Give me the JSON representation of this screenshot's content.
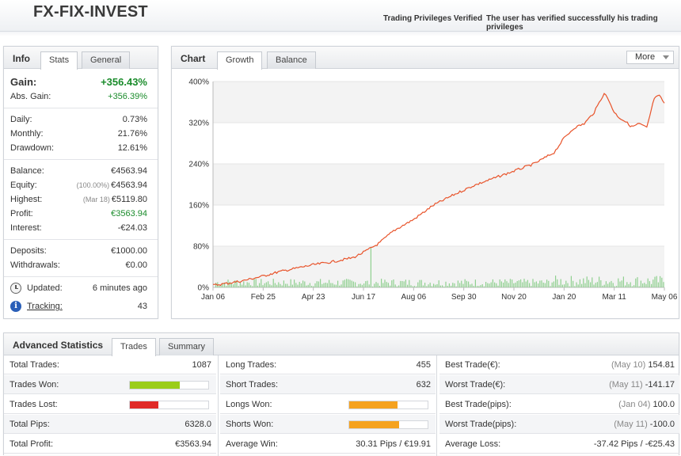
{
  "header": {
    "brand": "FX-FIX-INVEST",
    "verified_label": "Trading Privileges Verified",
    "verified_text": "The user has verified successfully his trading privileges"
  },
  "info": {
    "title": "Info",
    "tabs": [
      "Stats",
      "General"
    ],
    "gain": {
      "label": "Gain:",
      "value": "+356.43%"
    },
    "abs_gain": {
      "label": "Abs. Gain:",
      "value": "+356.39%"
    },
    "daily": {
      "label": "Daily:",
      "value": "0.73%"
    },
    "monthly": {
      "label": "Monthly:",
      "value": "21.76%"
    },
    "drawdown": {
      "label": "Drawdown:",
      "value": "12.61%"
    },
    "balance": {
      "label": "Balance:",
      "value": "€4563.94"
    },
    "equity": {
      "label": "Equity:",
      "sub": "(100.00%)",
      "value": "€4563.94"
    },
    "highest": {
      "label": "Highest:",
      "sub": "(Mar 18)",
      "value": "€5119.80"
    },
    "profit": {
      "label": "Profit:",
      "value": "€3563.94"
    },
    "interest": {
      "label": "Interest:",
      "value": "-€24.03"
    },
    "deposits": {
      "label": "Deposits:",
      "value": "€1000.00"
    },
    "withdrawals": {
      "label": "Withdrawals:",
      "value": "€0.00"
    },
    "updated": {
      "label": "Updated:",
      "value": "6 minutes ago"
    },
    "tracking": {
      "label": "Tracking:",
      "value": "43"
    }
  },
  "chart_panel": {
    "title": "Chart",
    "tabs": [
      "Growth",
      "Balance"
    ],
    "more_label": "More"
  },
  "chart_data": {
    "type": "line",
    "title": "",
    "xlabel": "",
    "ylabel": "",
    "ylim": [
      0,
      400
    ],
    "y_ticks": [
      "0%",
      "80%",
      "160%",
      "240%",
      "320%",
      "400%"
    ],
    "y_tick_values": [
      0,
      80,
      160,
      240,
      320,
      400
    ],
    "x_ticks": [
      "Jan 06",
      "Feb 25",
      "Apr 23",
      "Jun 17",
      "Aug 06",
      "Sep 30",
      "Nov 20",
      "Jan 20",
      "Mar 11",
      "May 06"
    ],
    "grid": true,
    "series": [
      {
        "color": "#e8532a",
        "x": [
          0,
          0.3,
          0.6,
          1,
          1.3,
          1.6,
          2,
          2.4,
          2.8,
          3.0,
          3.3,
          3.6,
          4,
          4.4,
          4.8,
          5.2,
          5.6,
          6,
          6.4,
          6.8,
          7,
          7.2,
          7.4,
          7.6,
          7.8,
          7.9,
          8.0,
          8.1,
          8.2,
          8.35,
          8.5,
          8.65,
          8.8,
          8.9,
          9.0
        ],
        "values": [
          4,
          8,
          13,
          22,
          30,
          36,
          44,
          50,
          58,
          68,
          85,
          110,
          132,
          160,
          180,
          198,
          212,
          226,
          240,
          262,
          290,
          310,
          318,
          340,
          378,
          362,
          340,
          330,
          324,
          312,
          318,
          310,
          368,
          372,
          358
        ]
      }
    ],
    "volume_color": "#8fd08f"
  },
  "adv": {
    "title": "Advanced Statistics",
    "tabs": [
      "Trades",
      "Summary"
    ],
    "col1": [
      {
        "label": "Total Trades:",
        "value": "1087"
      },
      {
        "label": "Trades Won:",
        "bar": 0.64,
        "color": "#9acd1a"
      },
      {
        "label": "Trades Lost:",
        "bar": 0.36,
        "color": "#e02a28"
      },
      {
        "label": "Total Pips:",
        "value": "6328.0"
      },
      {
        "label": "Total Profit:",
        "value": "€3563.94"
      }
    ],
    "col2": [
      {
        "label": "Long Trades:",
        "value": "455"
      },
      {
        "label": "Short Trades:",
        "value": "632"
      },
      {
        "label": "Longs Won:",
        "bar": 0.62,
        "color": "#f5a21f"
      },
      {
        "label": "Shorts Won:",
        "bar": 0.64,
        "color": "#f5a21f"
      },
      {
        "label": "Average Win:",
        "value": "30.31 Pips / €19.91"
      }
    ],
    "col3": [
      {
        "label": "Best Trade(€):",
        "paren": "(May 10)",
        "value": "154.81"
      },
      {
        "label": "Worst Trade(€):",
        "paren": "(May 11)",
        "value": "-141.17"
      },
      {
        "label": "Best Trade(pips):",
        "paren": "(Jan 04)",
        "value": "100.0"
      },
      {
        "label": "Worst Trade(pips):",
        "paren": "(May 11)",
        "value": "-100.0"
      },
      {
        "label": "Average Loss:",
        "value": "-37.42 Pips / -€25.43"
      }
    ]
  }
}
